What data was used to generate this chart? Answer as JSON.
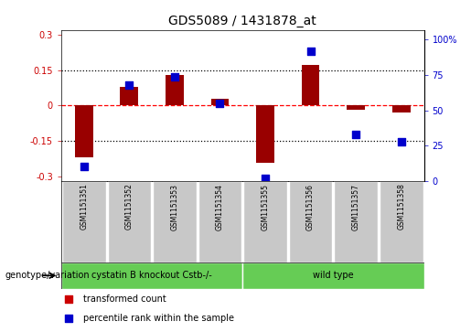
{
  "title": "GDS5089 / 1431878_at",
  "samples": [
    "GSM1151351",
    "GSM1151352",
    "GSM1151353",
    "GSM1151354",
    "GSM1151355",
    "GSM1151356",
    "GSM1151357",
    "GSM1151358"
  ],
  "red_values": [
    -0.22,
    0.08,
    0.13,
    0.03,
    -0.245,
    0.17,
    -0.02,
    -0.03
  ],
  "blue_values": [
    10,
    68,
    74,
    55,
    2,
    92,
    33,
    28
  ],
  "ylim_left": [
    -0.32,
    0.32
  ],
  "ylim_right": [
    0,
    107
  ],
  "yticks_left": [
    -0.3,
    -0.15,
    0,
    0.15,
    0.3
  ],
  "yticks_right": [
    0,
    25,
    50,
    75,
    100
  ],
  "ytick_labels_left": [
    "-0.3",
    "-0.15",
    "0",
    "0.15",
    "0.3"
  ],
  "ytick_labels_right": [
    "0",
    "25",
    "50",
    "75",
    "100%"
  ],
  "hlines": [
    0.15,
    0,
    -0.15
  ],
  "hline_styles": [
    "dotted",
    "dashed",
    "dotted"
  ],
  "hline_colors": [
    "black",
    "red",
    "black"
  ],
  "bar_color": "#990000",
  "dot_color": "#0000cc",
  "bar_width": 0.4,
  "dot_size": 35,
  "groups": [
    {
      "label": "cystatin B knockout Cstb-/-",
      "start": 0,
      "end": 4
    },
    {
      "label": "wild type",
      "start": 4,
      "end": 8
    }
  ],
  "group_color": "#66cc55",
  "genotype_label": "genotype/variation",
  "legend_items": [
    {
      "color": "#cc0000",
      "label": "transformed count"
    },
    {
      "color": "#0000cc",
      "label": "percentile rank within the sample"
    }
  ],
  "tick_label_color_left": "#cc0000",
  "tick_label_color_right": "#0000cc",
  "cell_color": "#c8c8c8",
  "cell_border": "#ffffff",
  "title_fontsize": 10,
  "sample_fontsize": 5.5,
  "group_fontsize": 7,
  "legend_fontsize": 7,
  "genotype_fontsize": 7
}
